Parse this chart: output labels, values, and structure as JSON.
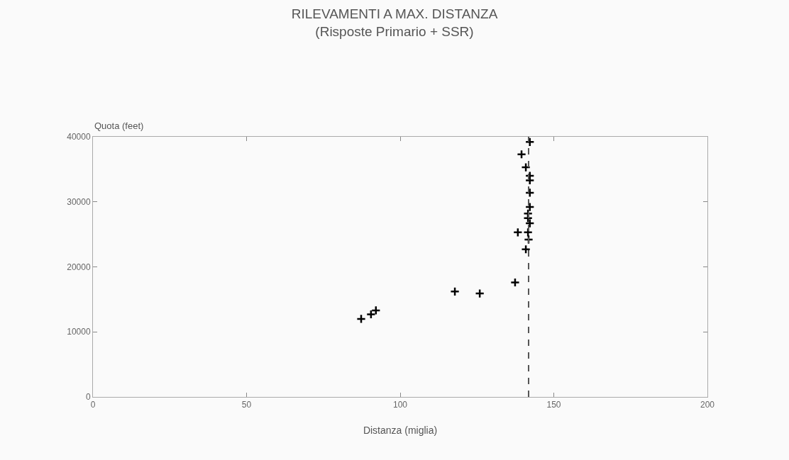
{
  "chart_data": {
    "type": "scatter",
    "title": "RILEVAMENTI A MAX. DISTANZA",
    "subtitle": "(Risposte Primario + SSR)",
    "xlabel": "Distanza (miglia)",
    "ylabel": "Quota (feet)",
    "x": [
      87.3,
      90.5,
      92.1,
      117.8,
      125.9,
      137.4,
      138.3,
      140.9,
      141.8,
      141.6,
      142.2,
      141.6,
      141.6,
      142.2,
      142.2,
      142.2,
      142.2,
      140.9,
      139.5,
      142.2
    ],
    "series": [
      {
        "color": "#000000",
        "values": [
          12000,
          12700,
          13300,
          16200,
          15900,
          17600,
          25300,
          22700,
          24200,
          25300,
          26700,
          27500,
          28200,
          29200,
          31400,
          33300,
          34000,
          35300,
          37300,
          39200
        ]
      }
    ],
    "xlim": [
      0,
      200
    ],
    "xticks": [
      0,
      50,
      100,
      150,
      200
    ],
    "ylim": [
      0,
      40000
    ],
    "yticks": [
      0,
      10000,
      20000,
      30000,
      40000
    ],
    "ref_lines": [
      {
        "axis": "x",
        "value": 141.8,
        "line_style": "dashed",
        "color": "#555555"
      }
    ],
    "grid": false,
    "marker": "cross"
  }
}
